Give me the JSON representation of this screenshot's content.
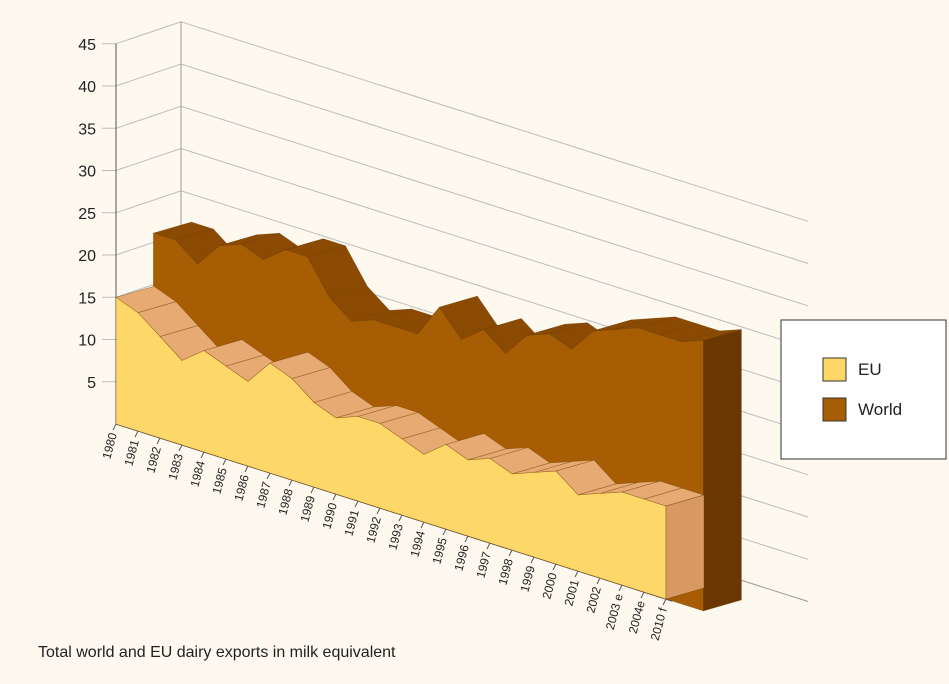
{
  "chart_data": {
    "type": "area",
    "title": "",
    "caption": "Total world and EU dairy exports in milk equivalent",
    "xlabel": "",
    "ylabel": "",
    "ylim": [
      0,
      45
    ],
    "yticks": [
      5,
      10,
      15,
      20,
      25,
      30,
      35,
      40,
      45
    ],
    "grid": true,
    "legend_position": "right",
    "categories": [
      "1980",
      "1981",
      "1982",
      "1983",
      "1984",
      "1985",
      "1986",
      "1987",
      "1988",
      "1989",
      "1990",
      "1991",
      "1992",
      "1993",
      "1994",
      "1995",
      "1996",
      "1997",
      "1998",
      "1999",
      "2000",
      "2001",
      "2002",
      "2003 e",
      "2004e",
      "2010 f"
    ],
    "series": [
      {
        "name": "EU",
        "color": "#fdd868",
        "values": [
          15,
          14,
          12,
          10,
          12,
          11,
          10,
          13,
          12,
          10,
          9,
          10,
          10,
          9,
          8,
          10,
          9,
          10,
          9,
          10,
          11,
          9,
          10,
          11,
          11,
          11
        ]
      },
      {
        "name": "World",
        "color": "#a65d03",
        "values": [
          24,
          24,
          22,
          25,
          26,
          25,
          27,
          27,
          23,
          21,
          22,
          22,
          22,
          26,
          23,
          25,
          23,
          26,
          27,
          26,
          29,
          30,
          31,
          31,
          31,
          32
        ]
      }
    ]
  }
}
